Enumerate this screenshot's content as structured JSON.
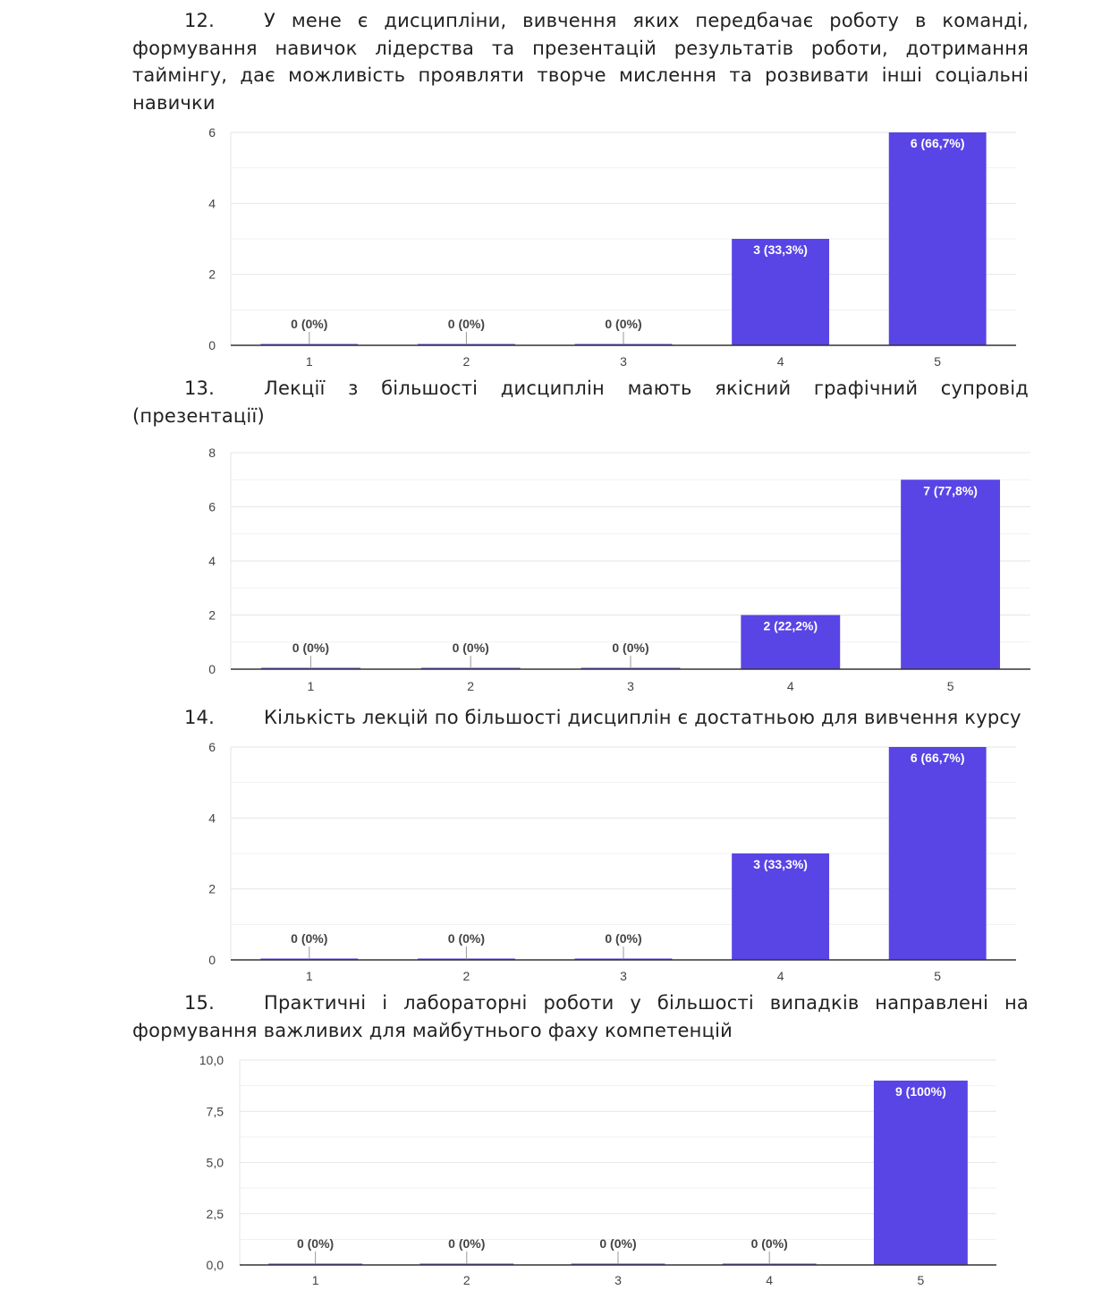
{
  "questions": [
    {
      "number": "12.",
      "text": "У мене є дисципліни, вивчення яких передбачає роботу в команді, формування навичок лідерства та презентацій результатів роботи, дотримання таймінгу, дає можливість проявляти творче мислення та розвивати інші соціальні навички"
    },
    {
      "number": "13.",
      "text": "Лекції з більшості дисциплін мають якісний графічний супровід (презентації)"
    },
    {
      "number": "14.",
      "text": "Кількість лекцій по більшості дисциплін є достатньою для вивчення курсу"
    },
    {
      "number": "15.",
      "text": "Практичні і лабораторні роботи у більшості випадків направлені на формування важливих для майбутнього фаху компетенцій"
    }
  ],
  "colors": {
    "bar": "#5944e5",
    "grid": "#e6e6e6",
    "axis": "#333333",
    "label_inside": "#ffffff",
    "label_outside": "#444444"
  },
  "chart_data": [
    {
      "type": "bar",
      "categories": [
        "1",
        "2",
        "3",
        "4",
        "5"
      ],
      "values": [
        0,
        0,
        0,
        3,
        6
      ],
      "data_labels": [
        "0 (0%)",
        "0 (0%)",
        "0 (0%)",
        "3 (33,3%)",
        "6 (66,7%)"
      ],
      "ylim": [
        0,
        6
      ],
      "yticks": [
        "0",
        "2",
        "4",
        "6"
      ],
      "grid": true
    },
    {
      "type": "bar",
      "categories": [
        "1",
        "2",
        "3",
        "4",
        "5"
      ],
      "values": [
        0,
        0,
        0,
        2,
        7
      ],
      "data_labels": [
        "0 (0%)",
        "0 (0%)",
        "0 (0%)",
        "2 (22,2%)",
        "7 (77,8%)"
      ],
      "ylim": [
        0,
        8
      ],
      "yticks": [
        "0",
        "2",
        "4",
        "6",
        "8"
      ],
      "grid": true
    },
    {
      "type": "bar",
      "categories": [
        "1",
        "2",
        "3",
        "4",
        "5"
      ],
      "values": [
        0,
        0,
        0,
        3,
        6
      ],
      "data_labels": [
        "0 (0%)",
        "0 (0%)",
        "0 (0%)",
        "3 (33,3%)",
        "6 (66,7%)"
      ],
      "ylim": [
        0,
        6
      ],
      "yticks": [
        "0",
        "2",
        "4",
        "6"
      ],
      "grid": true
    },
    {
      "type": "bar",
      "categories": [
        "1",
        "2",
        "3",
        "4",
        "5"
      ],
      "values": [
        0,
        0,
        0,
        0,
        9
      ],
      "data_labels": [
        "0 (0%)",
        "0 (0%)",
        "0 (0%)",
        "0 (0%)",
        "9 (100%)"
      ],
      "ylim": [
        0,
        10
      ],
      "yticks": [
        "0,0",
        "2,5",
        "5,0",
        "7,5",
        "10,0"
      ],
      "grid": true
    }
  ]
}
